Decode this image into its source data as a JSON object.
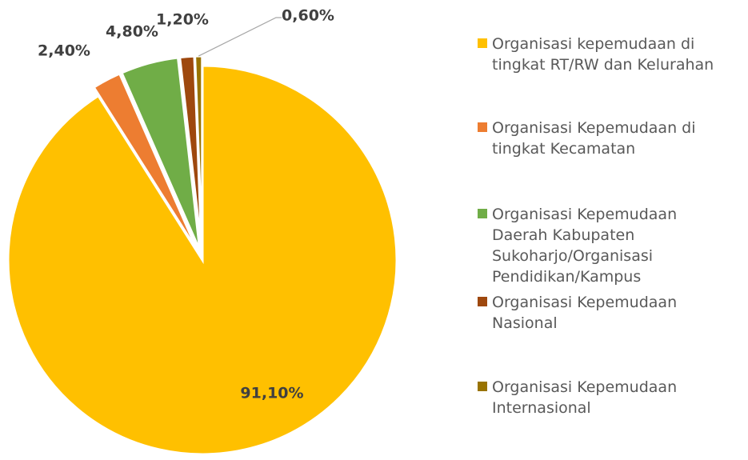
{
  "chart_data": {
    "type": "pie",
    "categories": [
      "Organisasi kepemudaan di tingkat RT/RW dan Kelurahan",
      "Organisasi Kepemudaan di tingkat Kecamatan",
      "Organisasi Kepemudaan Daerah Kabupaten Sukoharjo/Organisasi Pendidikan/Kampus",
      "Organisasi Kepemudaan Nasional",
      "Organisasi Kepemudaan Internasional"
    ],
    "values": [
      91.1,
      2.4,
      4.8,
      1.2,
      0.6
    ],
    "value_labels": [
      "91,10%",
      "2,40%",
      "4,80%",
      "1,20%",
      "0,60%"
    ],
    "colors": [
      "#FFC000",
      "#ED7D31",
      "#70AD47",
      "#9E480E",
      "#997300"
    ],
    "legend": "right"
  }
}
